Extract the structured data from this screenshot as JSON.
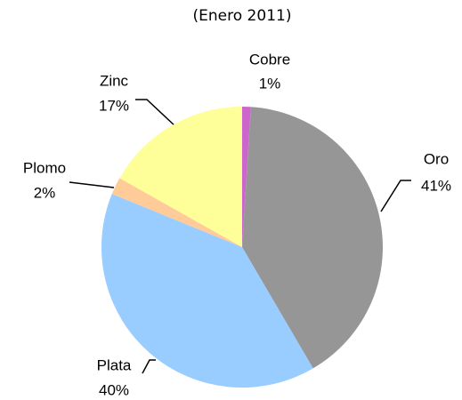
{
  "chart_data": {
    "type": "pie",
    "subtitle": "(Enero 2011)",
    "categories": [
      "Cobre",
      "Oro",
      "Plata",
      "Plomo",
      "Zinc"
    ],
    "values": [
      1,
      41,
      40,
      2,
      17
    ],
    "value_labels": [
      "1%",
      "41%",
      "40%",
      "2%",
      "17%"
    ],
    "colors": [
      "#cc66cc",
      "#969696",
      "#99ccff",
      "#ffcc99",
      "#ffff99"
    ]
  }
}
